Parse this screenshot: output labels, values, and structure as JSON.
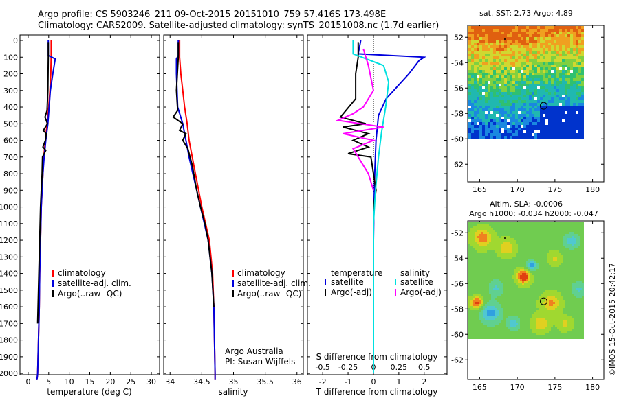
{
  "titles": {
    "line1": "Argo profile: CS 5903246_211 09-Oct-2015 20151010_759 57.416S 173.498E",
    "line2": "Climatology: CARS2009. Satellite-adjusted climatology: synTS_20151008.nc (1.7d earlier)"
  },
  "credit": "©IMOS 15-Oct-2015 20:42:17",
  "colors": {
    "climatology": "#ff0000",
    "satellite": "#0000dd",
    "argo": "#000000",
    "sat_salinity": "#00e0e0",
    "argo_salinity": "#ff00ff"
  },
  "depth_ticks": [
    "0",
    "100",
    "200",
    "300",
    "400",
    "500",
    "600",
    "700",
    "800",
    "900",
    "1000",
    "1100",
    "1200",
    "1300",
    "1400",
    "1500",
    "1600",
    "1700",
    "1800",
    "1900",
    "2000"
  ],
  "panels": {
    "temperature": {
      "xlabel": "temperature (deg C)",
      "xticks": [
        "0",
        "5",
        "10",
        "15",
        "20",
        "25",
        "30"
      ],
      "legend": [
        "climatology",
        "satellite-adj. clim.",
        "Argo(..raw -QC)"
      ]
    },
    "salinity": {
      "xlabel": "salinity",
      "xticks": [
        "34",
        "34.5",
        "35",
        "35.5",
        "36"
      ],
      "legend": [
        "climatology",
        "satellite-adj. clim.",
        "Argo(..raw -QC)"
      ],
      "note1": "Argo Australia",
      "note2": "PI: Susan Wijffels"
    },
    "difference": {
      "top_label": "S difference from climatology",
      "top_ticks": [
        "-0.5",
        "-0.25",
        "0",
        "0.25",
        "0.5"
      ],
      "xlabel": "T difference from climatology",
      "xticks": [
        "-2",
        "-1",
        "0",
        "1",
        "2"
      ],
      "legend_temp_title": "temperature",
      "legend_sal_title": "salinity",
      "legend_temp": [
        "satellite",
        "Argo(-adj)"
      ],
      "legend_sal": [
        "satellite",
        "Argo(-adj)"
      ]
    }
  },
  "maps": {
    "sst": {
      "title": "sat. SST: 2.73 Argo: 4.89",
      "yticks": [
        "-52",
        "-54",
        "-56",
        "-58",
        "-60",
        "-62"
      ],
      "xticks": [
        "165",
        "170",
        "175",
        "180"
      ],
      "argo_position": {
        "lon": 173.5,
        "lat": -57.4
      }
    },
    "sla": {
      "title1": "Altim. SLA: -0.0006",
      "title2": "Argo h1000: -0.034 h2000: -0.047",
      "yticks": [
        "-52",
        "-54",
        "-56",
        "-58",
        "-60",
        "-62"
      ],
      "xticks": [
        "165",
        "170",
        "175",
        "180"
      ],
      "argo_position": {
        "lon": 173.5,
        "lat": -57.4
      }
    }
  },
  "chart_data": [
    {
      "type": "line",
      "title": "",
      "xlabel": "temperature (deg C)",
      "ylabel": "",
      "xlim": [
        -2,
        32
      ],
      "ylim": [
        2050,
        0
      ],
      "series": [
        {
          "name": "climatology",
          "x": [
            5.6,
            5.6,
            5.5,
            5.3,
            5.0,
            4.6,
            4.2,
            3.8,
            3.6,
            3.4,
            3.2,
            3.0,
            2.8,
            2.7,
            2.6,
            2.5,
            2.4,
            2.3,
            2.2,
            2.1
          ],
          "y": [
            0,
            100,
            200,
            300,
            400,
            500,
            600,
            700,
            800,
            900,
            1000,
            1200,
            1400,
            1600,
            1700,
            1800,
            1900,
            2000,
            2025,
            2040
          ]
        },
        {
          "name": "satellite-adj. clim.",
          "x": [
            4.9,
            4.9,
            6.6,
            6.0,
            5.4,
            4.8,
            4.3,
            3.9,
            3.6,
            3.4,
            3.2,
            3.0,
            2.8,
            2.7,
            2.6,
            2.5,
            2.4,
            2.3,
            2.2,
            2.1
          ],
          "y": [
            0,
            90,
            110,
            200,
            300,
            500,
            600,
            700,
            800,
            900,
            1000,
            1200,
            1400,
            1600,
            1700,
            1800,
            1900,
            2000,
            2025,
            2040
          ]
        },
        {
          "name": "Argo(..raw -QC)",
          "x": [
            4.9,
            4.9,
            4.8,
            4.6,
            4.1,
            4.7,
            3.7,
            4.4,
            4.2,
            3.6,
            4.3,
            3.5,
            3.4,
            3.2,
            3.0,
            2.8,
            2.6,
            2.4,
            2.3
          ],
          "y": [
            10,
            100,
            300,
            420,
            460,
            500,
            540,
            560,
            600,
            640,
            660,
            700,
            800,
            900,
            1000,
            1200,
            1400,
            1600,
            1700
          ]
        }
      ]
    },
    {
      "type": "line",
      "title": "",
      "xlabel": "salinity",
      "ylabel": "",
      "xlim": [
        33.9,
        36.1
      ],
      "ylim": [
        2050,
        0
      ],
      "series": [
        {
          "name": "climatology",
          "x": [
            34.15,
            34.15,
            34.17,
            34.2,
            34.23,
            34.27,
            34.3,
            34.35,
            34.4,
            34.45,
            34.5,
            34.56,
            34.62,
            34.67,
            34.69,
            34.7,
            34.71,
            34.71
          ],
          "y": [
            0,
            100,
            200,
            300,
            400,
            500,
            600,
            700,
            800,
            900,
            1000,
            1100,
            1200,
            1400,
            1600,
            1800,
            2000,
            2040
          ]
        },
        {
          "name": "satellite-adj. clim.",
          "x": [
            34.13,
            34.13,
            34.1,
            34.1,
            34.12,
            34.2,
            34.25,
            34.3,
            34.36,
            34.42,
            34.48,
            34.54,
            34.6,
            34.66,
            34.69,
            34.7,
            34.71,
            34.71
          ],
          "y": [
            0,
            90,
            110,
            200,
            400,
            500,
            600,
            700,
            800,
            900,
            1000,
            1100,
            1200,
            1400,
            1600,
            1800,
            2000,
            2040
          ]
        },
        {
          "name": "Argo(..raw -QC)",
          "x": [
            34.13,
            34.13,
            34.1,
            34.12,
            34.05,
            34.2,
            34.15,
            34.25,
            34.2,
            34.28,
            34.35,
            34.42,
            34.48,
            34.55,
            34.6,
            34.66,
            34.69
          ],
          "y": [
            10,
            100,
            300,
            420,
            460,
            500,
            540,
            560,
            600,
            650,
            750,
            900,
            1000,
            1100,
            1200,
            1400,
            1600
          ]
        }
      ]
    },
    {
      "type": "line",
      "title": "",
      "xlabel": "T difference from climatology",
      "ylabel": "",
      "xlim": [
        -2.6,
        2.9
      ],
      "ylim": [
        2050,
        0
      ],
      "series": [
        {
          "name": "temperature satellite",
          "x": [
            -0.5,
            -0.6,
            2.0,
            1.8,
            1.4,
            0.5,
            0.2,
            0.1,
            0.05,
            0.02,
            0,
            0,
            0,
            0
          ],
          "y": [
            0,
            80,
            100,
            120,
            200,
            350,
            450,
            600,
            800,
            1000,
            1200,
            1500,
            1800,
            2000
          ]
        },
        {
          "name": "temperature Argo(-adj)",
          "x": [
            -0.6,
            -0.6,
            -0.7,
            -0.7,
            -1.3,
            -0.3,
            -1.2,
            -0.2,
            -0.8,
            -0.2,
            -1.0,
            -0.1,
            0.1,
            0,
            0
          ],
          "y": [
            10,
            100,
            200,
            350,
            460,
            500,
            520,
            560,
            600,
            640,
            680,
            700,
            900,
            1000,
            1100
          ]
        },
        {
          "name": "salinity satellite",
          "x": [
            -0.2,
            -0.2,
            0.1,
            0.15,
            0.12,
            0.08,
            0.05,
            0.02,
            0,
            0,
            0
          ],
          "y": [
            0,
            80,
            150,
            250,
            400,
            550,
            700,
            900,
            1100,
            1500,
            2000
          ]
        },
        {
          "name": "salinity Argo(-adj)",
          "x": [
            -0.1,
            -0.05,
            0,
            -0.1,
            -0.2,
            -0.35,
            0.1,
            -0.3,
            0,
            -0.2,
            -0.05,
            0
          ],
          "y": [
            50,
            150,
            300,
            400,
            440,
            480,
            520,
            560,
            600,
            650,
            800,
            900
          ]
        }
      ]
    }
  ]
}
